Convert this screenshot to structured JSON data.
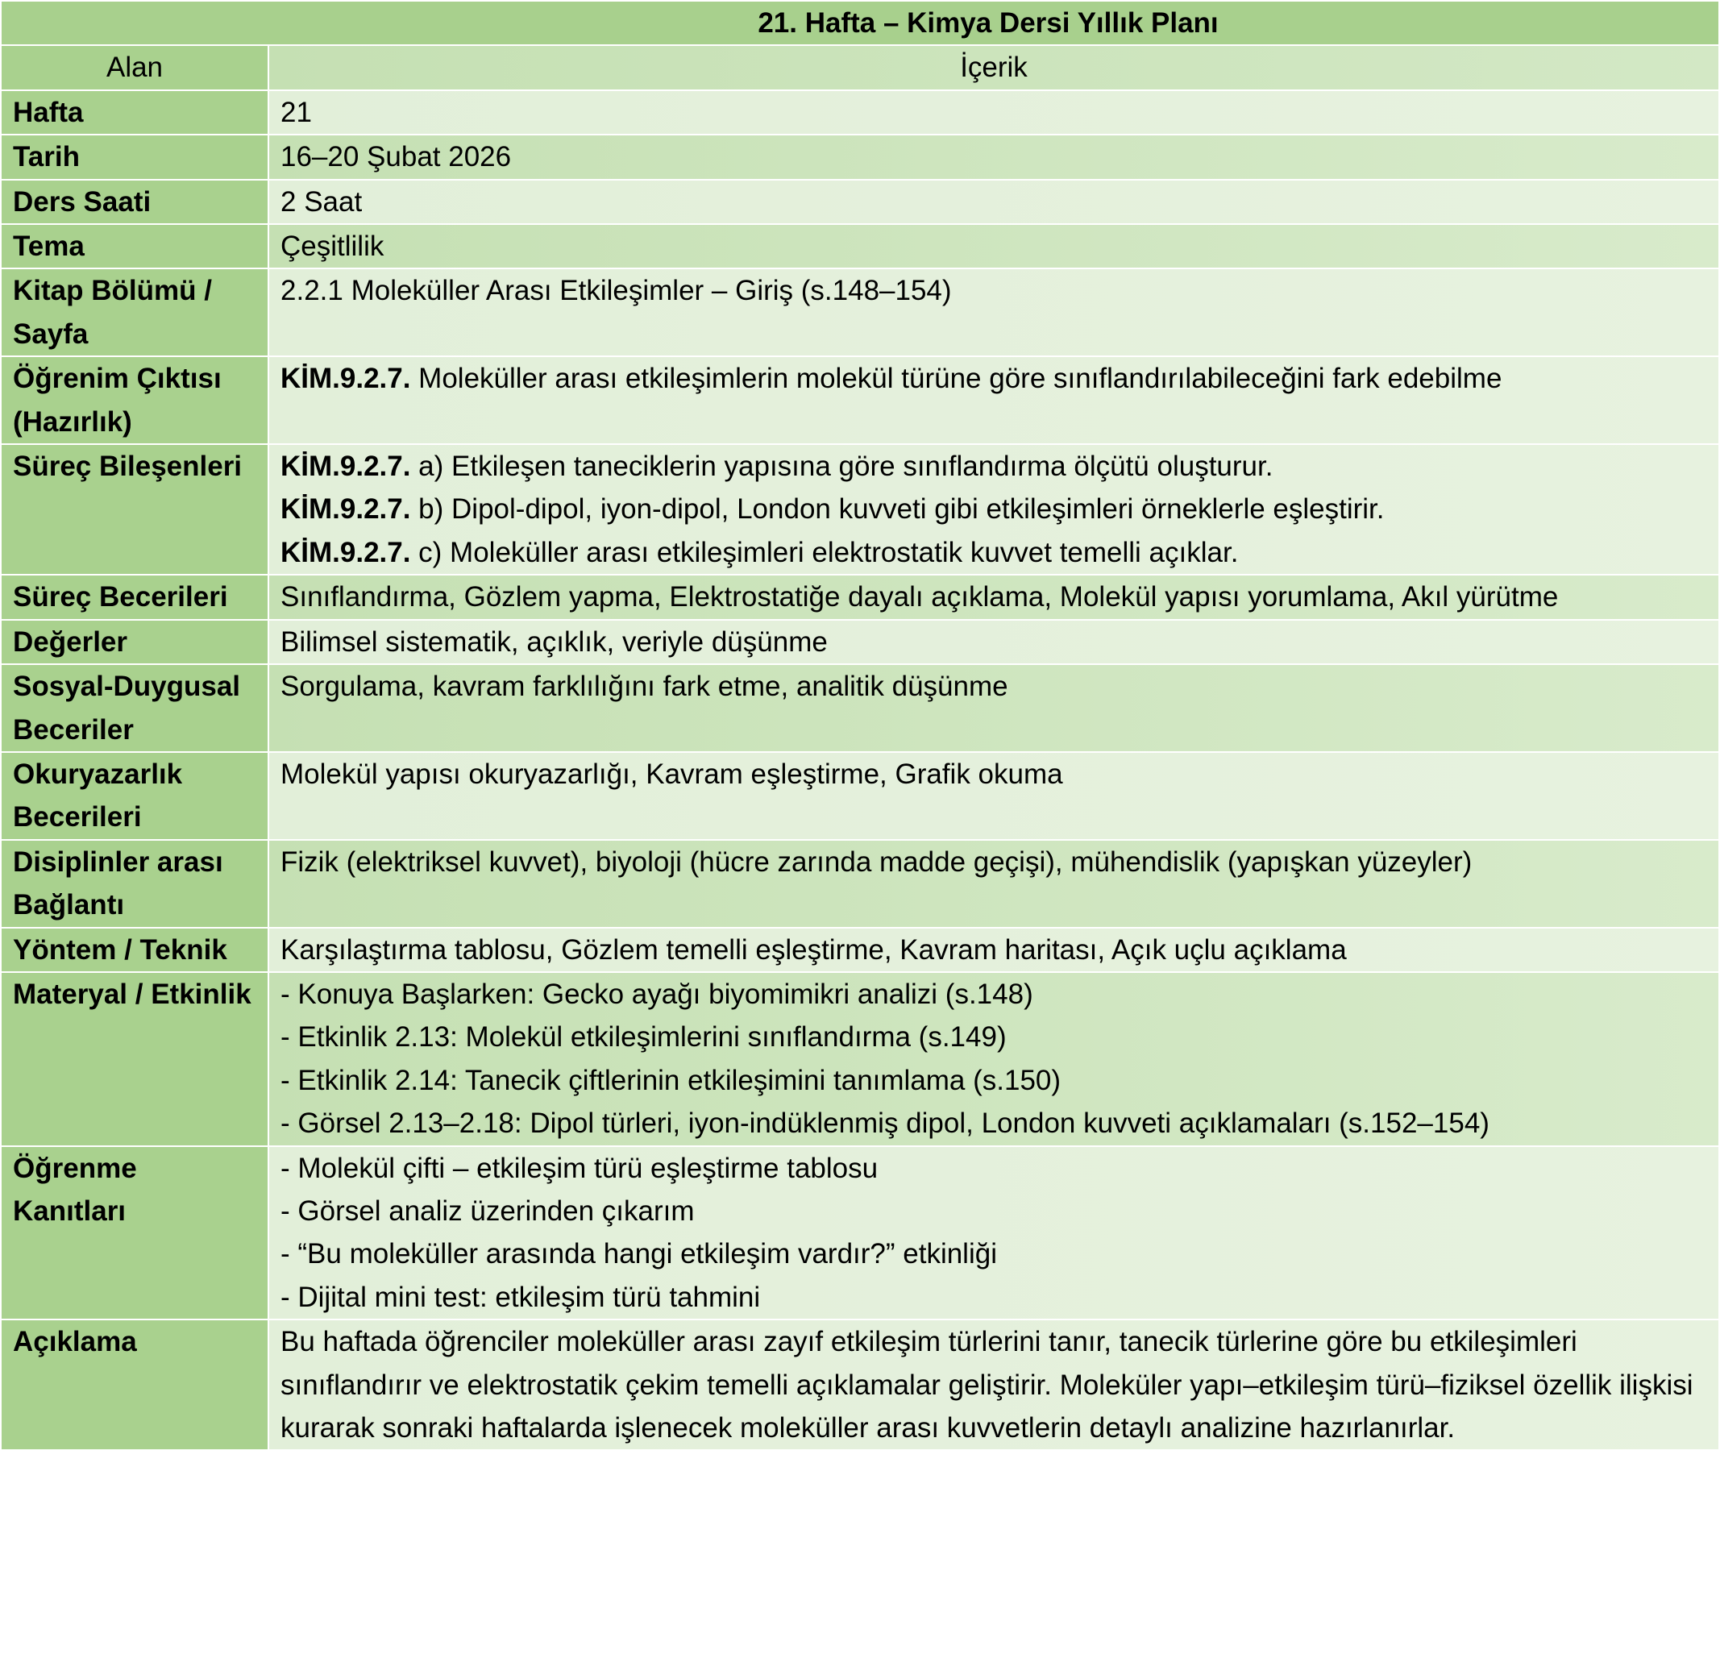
{
  "title": "21. Hafta – Kimya Dersi Yıllık Planı",
  "header": {
    "col1": "Alan",
    "col2": "İçerik"
  },
  "colors": {
    "title_bg": "#a8d08d",
    "label_bg": "#a9d18e",
    "row_light": "#e2efd9",
    "row_mid": "#c5e0b3"
  },
  "rows": [
    {
      "label": "Hafta",
      "lines": [
        {
          "text": "21"
        }
      ]
    },
    {
      "label": "Tarih",
      "lines": [
        {
          "text": "16–20 Şubat 2026"
        }
      ]
    },
    {
      "label": "Ders Saati",
      "lines": [
        {
          "text": "2 Saat"
        }
      ]
    },
    {
      "label": "Tema",
      "lines": [
        {
          "text": "Çeşitlilik"
        }
      ]
    },
    {
      "label": "Kitap Bölümü / Sayfa",
      "lines": [
        {
          "text": "2.2.1 Moleküller Arası Etkileşimler – Giriş (s.148–154)"
        }
      ]
    },
    {
      "label": "Öğrenim Çıktısı (Hazırlık)",
      "lines": [
        {
          "code": "KİM.9.2.7.",
          "text": " Moleküller arası etkileşimlerin molekül türüne göre sınıflandırılabileceğini fark edebilme"
        }
      ]
    },
    {
      "label": "Süreç Bileşenleri",
      "lines": [
        {
          "code": "KİM.9.2.7.",
          "text": " a) Etkileşen taneciklerin yapısına göre sınıflandırma ölçütü oluşturur."
        },
        {
          "code": "KİM.9.2.7.",
          "text": " b) Dipol-dipol, iyon-dipol, London kuvveti gibi etkileşimleri örneklerle eşleştirir."
        },
        {
          "code": "KİM.9.2.7.",
          "text": " c) Moleküller arası etkileşimleri elektrostatik kuvvet temelli açıklar."
        }
      ]
    },
    {
      "label": "Süreç Becerileri",
      "lines": [
        {
          "text": "Sınıflandırma, Gözlem yapma, Elektrostatiğe dayalı açıklama, Molekül yapısı yorumlama, Akıl yürütme"
        }
      ]
    },
    {
      "label": "Değerler",
      "lines": [
        {
          "text": "Bilimsel sistematik, açıklık, veriyle düşünme"
        }
      ]
    },
    {
      "label": "Sosyal-Duygusal Beceriler",
      "lines": [
        {
          "text": "Sorgulama, kavram farklılığını fark etme, analitik düşünme"
        }
      ]
    },
    {
      "label": "Okuryazarlık Becerileri",
      "lines": [
        {
          "text": "Molekül yapısı okuryazarlığı, Kavram eşleştirme, Grafik okuma"
        }
      ]
    },
    {
      "label": "Disiplinler arası Bağlantı",
      "lines": [
        {
          "text": "Fizik (elektriksel kuvvet), biyoloji (hücre zarında madde geçişi), mühendislik (yapışkan yüzeyler)"
        }
      ]
    },
    {
      "label": "Yöntem / Teknik",
      "lines": [
        {
          "text": "Karşılaştırma tablosu, Gözlem temelli eşleştirme, Kavram haritası, Açık uçlu açıklama"
        }
      ]
    },
    {
      "label": "Materyal / Etkinlik",
      "lines": [
        {
          "text": "- Konuya Başlarken: Gecko ayağı biyomimikri analizi (s.148)"
        },
        {
          "text": "- Etkinlik 2.13: Molekül etkileşimlerini sınıflandırma (s.149)"
        },
        {
          "text": "- Etkinlik 2.14: Tanecik çiftlerinin etkileşimini tanımlama (s.150)"
        },
        {
          "text": "- Görsel 2.13–2.18: Dipol türleri, iyon-indüklenmiş dipol, London kuvveti açıklamaları (s.152–154)"
        }
      ]
    },
    {
      "label": "Öğrenme Kanıtları",
      "lines": [
        {
          "text": "- Molekül çifti – etkileşim türü eşleştirme tablosu"
        },
        {
          "text": "- Görsel analiz üzerinden çıkarım"
        },
        {
          "text": "- “Bu moleküller arasında hangi etkileşim vardır?” etkinliği"
        },
        {
          "text": "- Dijital mini test: etkileşim türü tahmini"
        }
      ]
    },
    {
      "label": "Açıklama",
      "lines": [
        {
          "text": "Bu haftada öğrenciler moleküller arası zayıf etkileşim türlerini tanır, tanecik türlerine göre bu etkileşimleri sınıflandırır ve elektrostatik çekim temelli açıklamalar geliştirir. Moleküler yapı–etkileşim türü–fiziksel özellik ilişkisi kurarak sonraki haftalarda işlenecek moleküller arası kuvvetlerin detaylı analizine hazırlanırlar."
        }
      ]
    }
  ]
}
